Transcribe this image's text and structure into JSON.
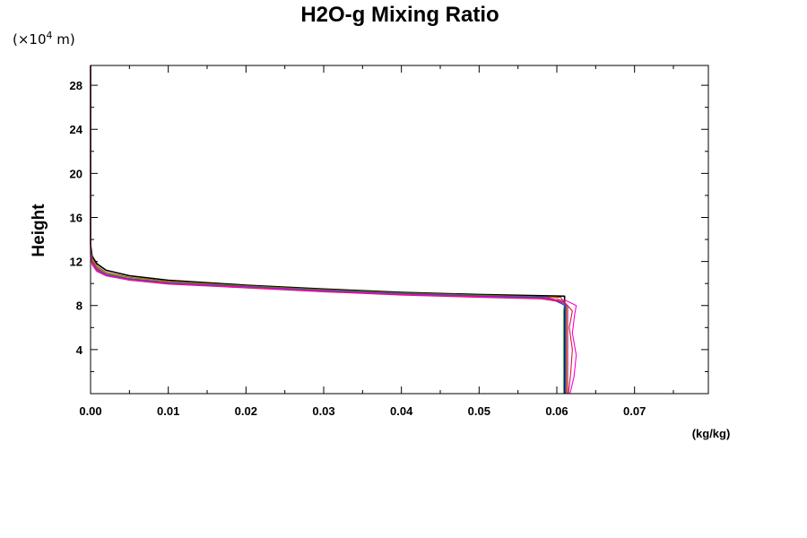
{
  "chart_data": {
    "type": "line",
    "title": "H2O-g Mixing Ratio",
    "ylabel": "Height",
    "xunit": "(kg/kg)",
    "yscale_label": "(×10",
    "yscale_exp": "4",
    "yscale_unit": " m)",
    "xlim": [
      0,
      0.0795
    ],
    "ylim": [
      0,
      29.8
    ],
    "xticks": [
      0,
      0.01,
      0.02,
      0.03,
      0.04,
      0.05,
      0.06,
      0.07
    ],
    "xtick_labels": [
      "0.00",
      "0.01",
      "0.02",
      "0.03",
      "0.04",
      "0.05",
      "0.06",
      "0.07"
    ],
    "yticks": [
      4,
      8,
      12,
      16,
      20,
      24,
      28
    ],
    "ytick_labels": [
      "4",
      "8",
      "12",
      "16",
      "20",
      "24",
      "28"
    ],
    "grid": false,
    "series": [
      {
        "color": "#000000",
        "points": [
          [
            0.061,
            0
          ],
          [
            0.061,
            4
          ],
          [
            0.061,
            8
          ],
          [
            0.061,
            8.85
          ],
          [
            0.05,
            9.0
          ],
          [
            0.04,
            9.2
          ],
          [
            0.03,
            9.5
          ],
          [
            0.02,
            9.85
          ],
          [
            0.01,
            10.3
          ],
          [
            0.005,
            10.7
          ],
          [
            0.002,
            11.2
          ],
          [
            0.0008,
            11.8
          ],
          [
            0.0002,
            12.5
          ],
          [
            0,
            13.5
          ],
          [
            0,
            29.8
          ]
        ]
      },
      {
        "color": "#8b4513",
        "points": [
          [
            0.0612,
            0
          ],
          [
            0.0612,
            4
          ],
          [
            0.0612,
            8
          ],
          [
            0.0605,
            8.75
          ],
          [
            0.05,
            8.95
          ],
          [
            0.04,
            9.15
          ],
          [
            0.03,
            9.45
          ],
          [
            0.02,
            9.8
          ],
          [
            0.01,
            10.2
          ],
          [
            0.005,
            10.55
          ],
          [
            0.002,
            11.0
          ],
          [
            0.0008,
            11.6
          ],
          [
            0.0002,
            12.3
          ],
          [
            0,
            13.2
          ],
          [
            0,
            29.8
          ]
        ]
      },
      {
        "color": "#ff8c00",
        "points": [
          [
            0.0613,
            0
          ],
          [
            0.0613,
            4
          ],
          [
            0.0613,
            8
          ],
          [
            0.06,
            8.7
          ],
          [
            0.05,
            8.9
          ],
          [
            0.04,
            9.1
          ],
          [
            0.03,
            9.4
          ],
          [
            0.02,
            9.75
          ],
          [
            0.01,
            10.15
          ],
          [
            0.005,
            10.5
          ],
          [
            0.002,
            10.9
          ],
          [
            0.0008,
            11.5
          ],
          [
            0.0002,
            12.2
          ],
          [
            0,
            13.0
          ],
          [
            0,
            29.8
          ]
        ]
      },
      {
        "color": "#228b22",
        "points": [
          [
            0.0609,
            0
          ],
          [
            0.0609,
            4
          ],
          [
            0.0609,
            7.5
          ],
          [
            0.061,
            8.3
          ],
          [
            0.058,
            8.75
          ],
          [
            0.05,
            8.9
          ],
          [
            0.04,
            9.1
          ],
          [
            0.03,
            9.4
          ],
          [
            0.02,
            9.75
          ],
          [
            0.01,
            10.1
          ],
          [
            0.005,
            10.45
          ],
          [
            0.002,
            10.85
          ],
          [
            0.0008,
            11.4
          ],
          [
            0.0002,
            12.1
          ],
          [
            0,
            12.9
          ],
          [
            0,
            29.8
          ]
        ]
      },
      {
        "color": "#1e3cff",
        "points": [
          [
            0.0611,
            0
          ],
          [
            0.0611,
            4
          ],
          [
            0.0611,
            8
          ],
          [
            0.059,
            8.7
          ],
          [
            0.05,
            8.85
          ],
          [
            0.04,
            9.05
          ],
          [
            0.03,
            9.35
          ],
          [
            0.02,
            9.7
          ],
          [
            0.01,
            10.05
          ],
          [
            0.005,
            10.4
          ],
          [
            0.002,
            10.8
          ],
          [
            0.0008,
            11.35
          ],
          [
            0.0002,
            12.0
          ],
          [
            0,
            12.8
          ],
          [
            0,
            29.8
          ]
        ]
      },
      {
        "color": "#9932cc",
        "points": [
          [
            0.0614,
            0
          ],
          [
            0.0614,
            4
          ],
          [
            0.0614,
            8
          ],
          [
            0.0595,
            8.6
          ],
          [
            0.05,
            8.8
          ],
          [
            0.04,
            9.0
          ],
          [
            0.03,
            9.3
          ],
          [
            0.02,
            9.65
          ],
          [
            0.01,
            10.0
          ],
          [
            0.005,
            10.35
          ],
          [
            0.002,
            10.75
          ],
          [
            0.0008,
            11.3
          ],
          [
            0.0002,
            11.95
          ],
          [
            0,
            12.7
          ],
          [
            0,
            29.8
          ]
        ]
      },
      {
        "color": "#dc143c",
        "points": [
          [
            0.0615,
            0
          ],
          [
            0.0618,
            2
          ],
          [
            0.062,
            4
          ],
          [
            0.0616,
            6
          ],
          [
            0.062,
            7.5
          ],
          [
            0.061,
            8.3
          ],
          [
            0.058,
            8.6
          ],
          [
            0.05,
            8.75
          ],
          [
            0.04,
            8.95
          ],
          [
            0.03,
            9.25
          ],
          [
            0.02,
            9.6
          ],
          [
            0.01,
            9.95
          ],
          [
            0.005,
            10.3
          ],
          [
            0.002,
            10.7
          ],
          [
            0.0008,
            11.2
          ],
          [
            0.0002,
            11.9
          ],
          [
            0,
            12.6
          ],
          [
            0,
            29.8
          ]
        ]
      },
      {
        "color": "#ff00cc",
        "points": [
          [
            0.0617,
            0
          ],
          [
            0.0622,
            1.5
          ],
          [
            0.0625,
            3.5
          ],
          [
            0.062,
            5.5
          ],
          [
            0.0623,
            7.2
          ],
          [
            0.0625,
            8.0
          ],
          [
            0.0612,
            8.45
          ],
          [
            0.058,
            8.65
          ],
          [
            0.05,
            8.8
          ],
          [
            0.04,
            9.0
          ],
          [
            0.03,
            9.3
          ],
          [
            0.02,
            9.65
          ],
          [
            0.01,
            10.0
          ],
          [
            0.005,
            10.35
          ],
          [
            0.002,
            10.7
          ],
          [
            0.0008,
            11.1
          ],
          [
            0.0002,
            11.7
          ],
          [
            0,
            12.4
          ],
          [
            0,
            29.8
          ]
        ]
      }
    ]
  }
}
